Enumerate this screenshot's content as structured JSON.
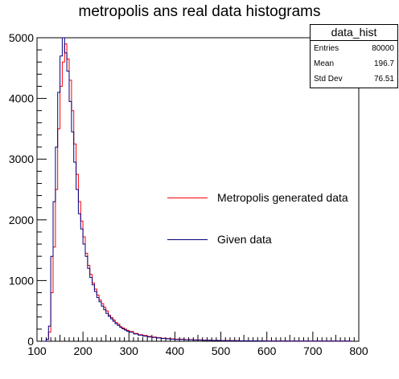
{
  "chart_data": {
    "type": "histogram",
    "title": "metropolis ans real data histograms",
    "xlim": [
      100,
      800
    ],
    "ylim": [
      0,
      5000
    ],
    "x_ticks": [
      "100",
      "200",
      "300",
      "400",
      "500",
      "600",
      "700",
      "800"
    ],
    "y_ticks": [
      "0",
      "1000",
      "2000",
      "3000",
      "4000",
      "5000"
    ],
    "bin_width": 5,
    "x": [
      115,
      120,
      125,
      130,
      135,
      140,
      145,
      150,
      155,
      160,
      165,
      170,
      175,
      180,
      185,
      190,
      195,
      200,
      205,
      210,
      215,
      220,
      225,
      230,
      235,
      240,
      245,
      250,
      255,
      260,
      265,
      270,
      275,
      280,
      285,
      290,
      295,
      300,
      310,
      320,
      330,
      340,
      350,
      360,
      370,
      380,
      390,
      400,
      420,
      440,
      460,
      480,
      500,
      520,
      540,
      560,
      580,
      600,
      650,
      700,
      750,
      780
    ],
    "series": [
      {
        "name": "Metropolis generated data",
        "color": "#ff0000",
        "values": [
          0,
          30,
          150,
          800,
          1550,
          2500,
          3500,
          4200,
          4600,
          4900,
          4650,
          4300,
          3800,
          3250,
          2750,
          2300,
          1980,
          1720,
          1450,
          1250,
          1100,
          960,
          860,
          760,
          680,
          620,
          560,
          500,
          430,
          390,
          350,
          310,
          280,
          240,
          220,
          200,
          180,
          160,
          130,
          110,
          95,
          80,
          70,
          60,
          50,
          45,
          40,
          35,
          28,
          22,
          18,
          15,
          12,
          10,
          8,
          7,
          6,
          5,
          4,
          3,
          2,
          1
        ]
      },
      {
        "name": "Given data",
        "color": "#000080",
        "values": [
          0,
          30,
          250,
          1400,
          2300,
          3200,
          4100,
          4700,
          5000,
          4750,
          4450,
          3950,
          3450,
          2950,
          2500,
          2100,
          1850,
          1600,
          1400,
          1200,
          1050,
          930,
          820,
          720,
          650,
          580,
          520,
          460,
          410,
          370,
          330,
          290,
          260,
          230,
          205,
          185,
          165,
          150,
          120,
          100,
          85,
          72,
          62,
          54,
          46,
          40,
          35,
          30,
          25,
          20,
          16,
          13,
          11,
          9,
          7,
          6,
          5,
          4,
          3,
          2,
          2,
          1
        ]
      }
    ],
    "legend": {
      "placement": "center-right"
    }
  },
  "stats": {
    "title": "data_hist",
    "rows": [
      {
        "label": "Entries",
        "value": "80000"
      },
      {
        "label": "Mean",
        "value": "196.7"
      },
      {
        "label": "Std Dev",
        "value": "76.51"
      }
    ]
  }
}
